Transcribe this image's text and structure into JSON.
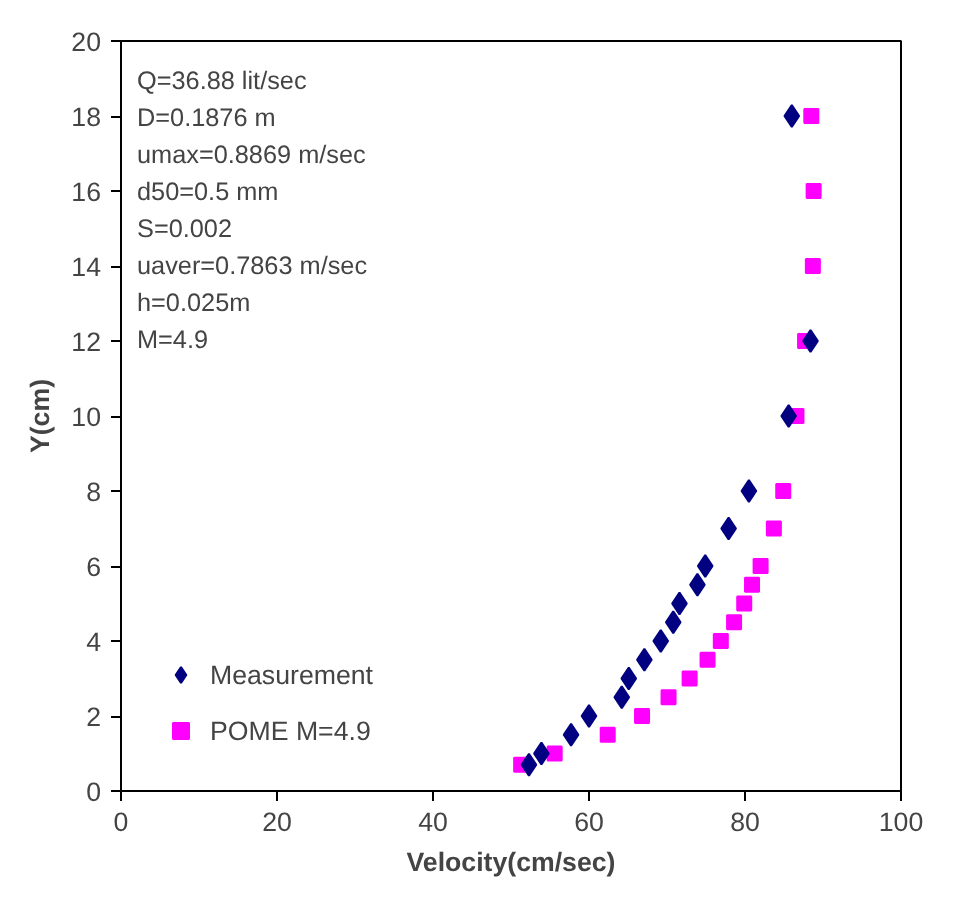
{
  "chart_data": {
    "type": "scatter",
    "xlabel": "Velocity(cm/sec)",
    "ylabel": "Y(cm)",
    "xlim": [
      0,
      100
    ],
    "xticks": [
      0,
      20,
      40,
      60,
      80,
      100
    ],
    "ylim": [
      0,
      20
    ],
    "yticks": [
      0,
      2,
      4,
      6,
      8,
      10,
      12,
      14,
      16,
      18,
      20
    ],
    "grid": false,
    "legend": "bottom left",
    "annotations": [
      "Q=36.88 lit/sec",
      "D=0.1876 m",
      "umax=0.8869 m/sec",
      "d50=0.5 mm",
      "S=0.002",
      "uaver=0.7863 m/sec",
      "h=0.025m",
      "M=4.9"
    ],
    "series": [
      {
        "name": "Measurement",
        "color": "#000080",
        "marker": "diamond",
        "x": [
          52.3,
          53.9,
          57.7,
          60.0,
          64.2,
          65.1,
          67.1,
          69.2,
          70.8,
          71.6,
          73.9,
          74.9,
          77.9,
          80.5,
          85.6,
          88.4,
          86.0
        ],
        "values": [
          0.7,
          1,
          1.5,
          2,
          2.5,
          3,
          3.5,
          4,
          4.5,
          5,
          5.5,
          6,
          7,
          8,
          10,
          12,
          18
        ]
      },
      {
        "name": "POME M=4.9",
        "color": "#ff00ff",
        "marker": "square",
        "x": [
          51.3,
          55.6,
          62.4,
          66.8,
          70.2,
          72.9,
          75.2,
          76.9,
          78.6,
          79.9,
          80.9,
          82.0,
          83.7,
          84.9,
          86.6,
          87.7,
          88.7,
          88.8,
          88.5
        ],
        "values": [
          0.7,
          1,
          1.5,
          2,
          2.5,
          3,
          3.5,
          4,
          4.5,
          5,
          5.5,
          6,
          7,
          8,
          10,
          12,
          14,
          16,
          18
        ]
      }
    ]
  }
}
